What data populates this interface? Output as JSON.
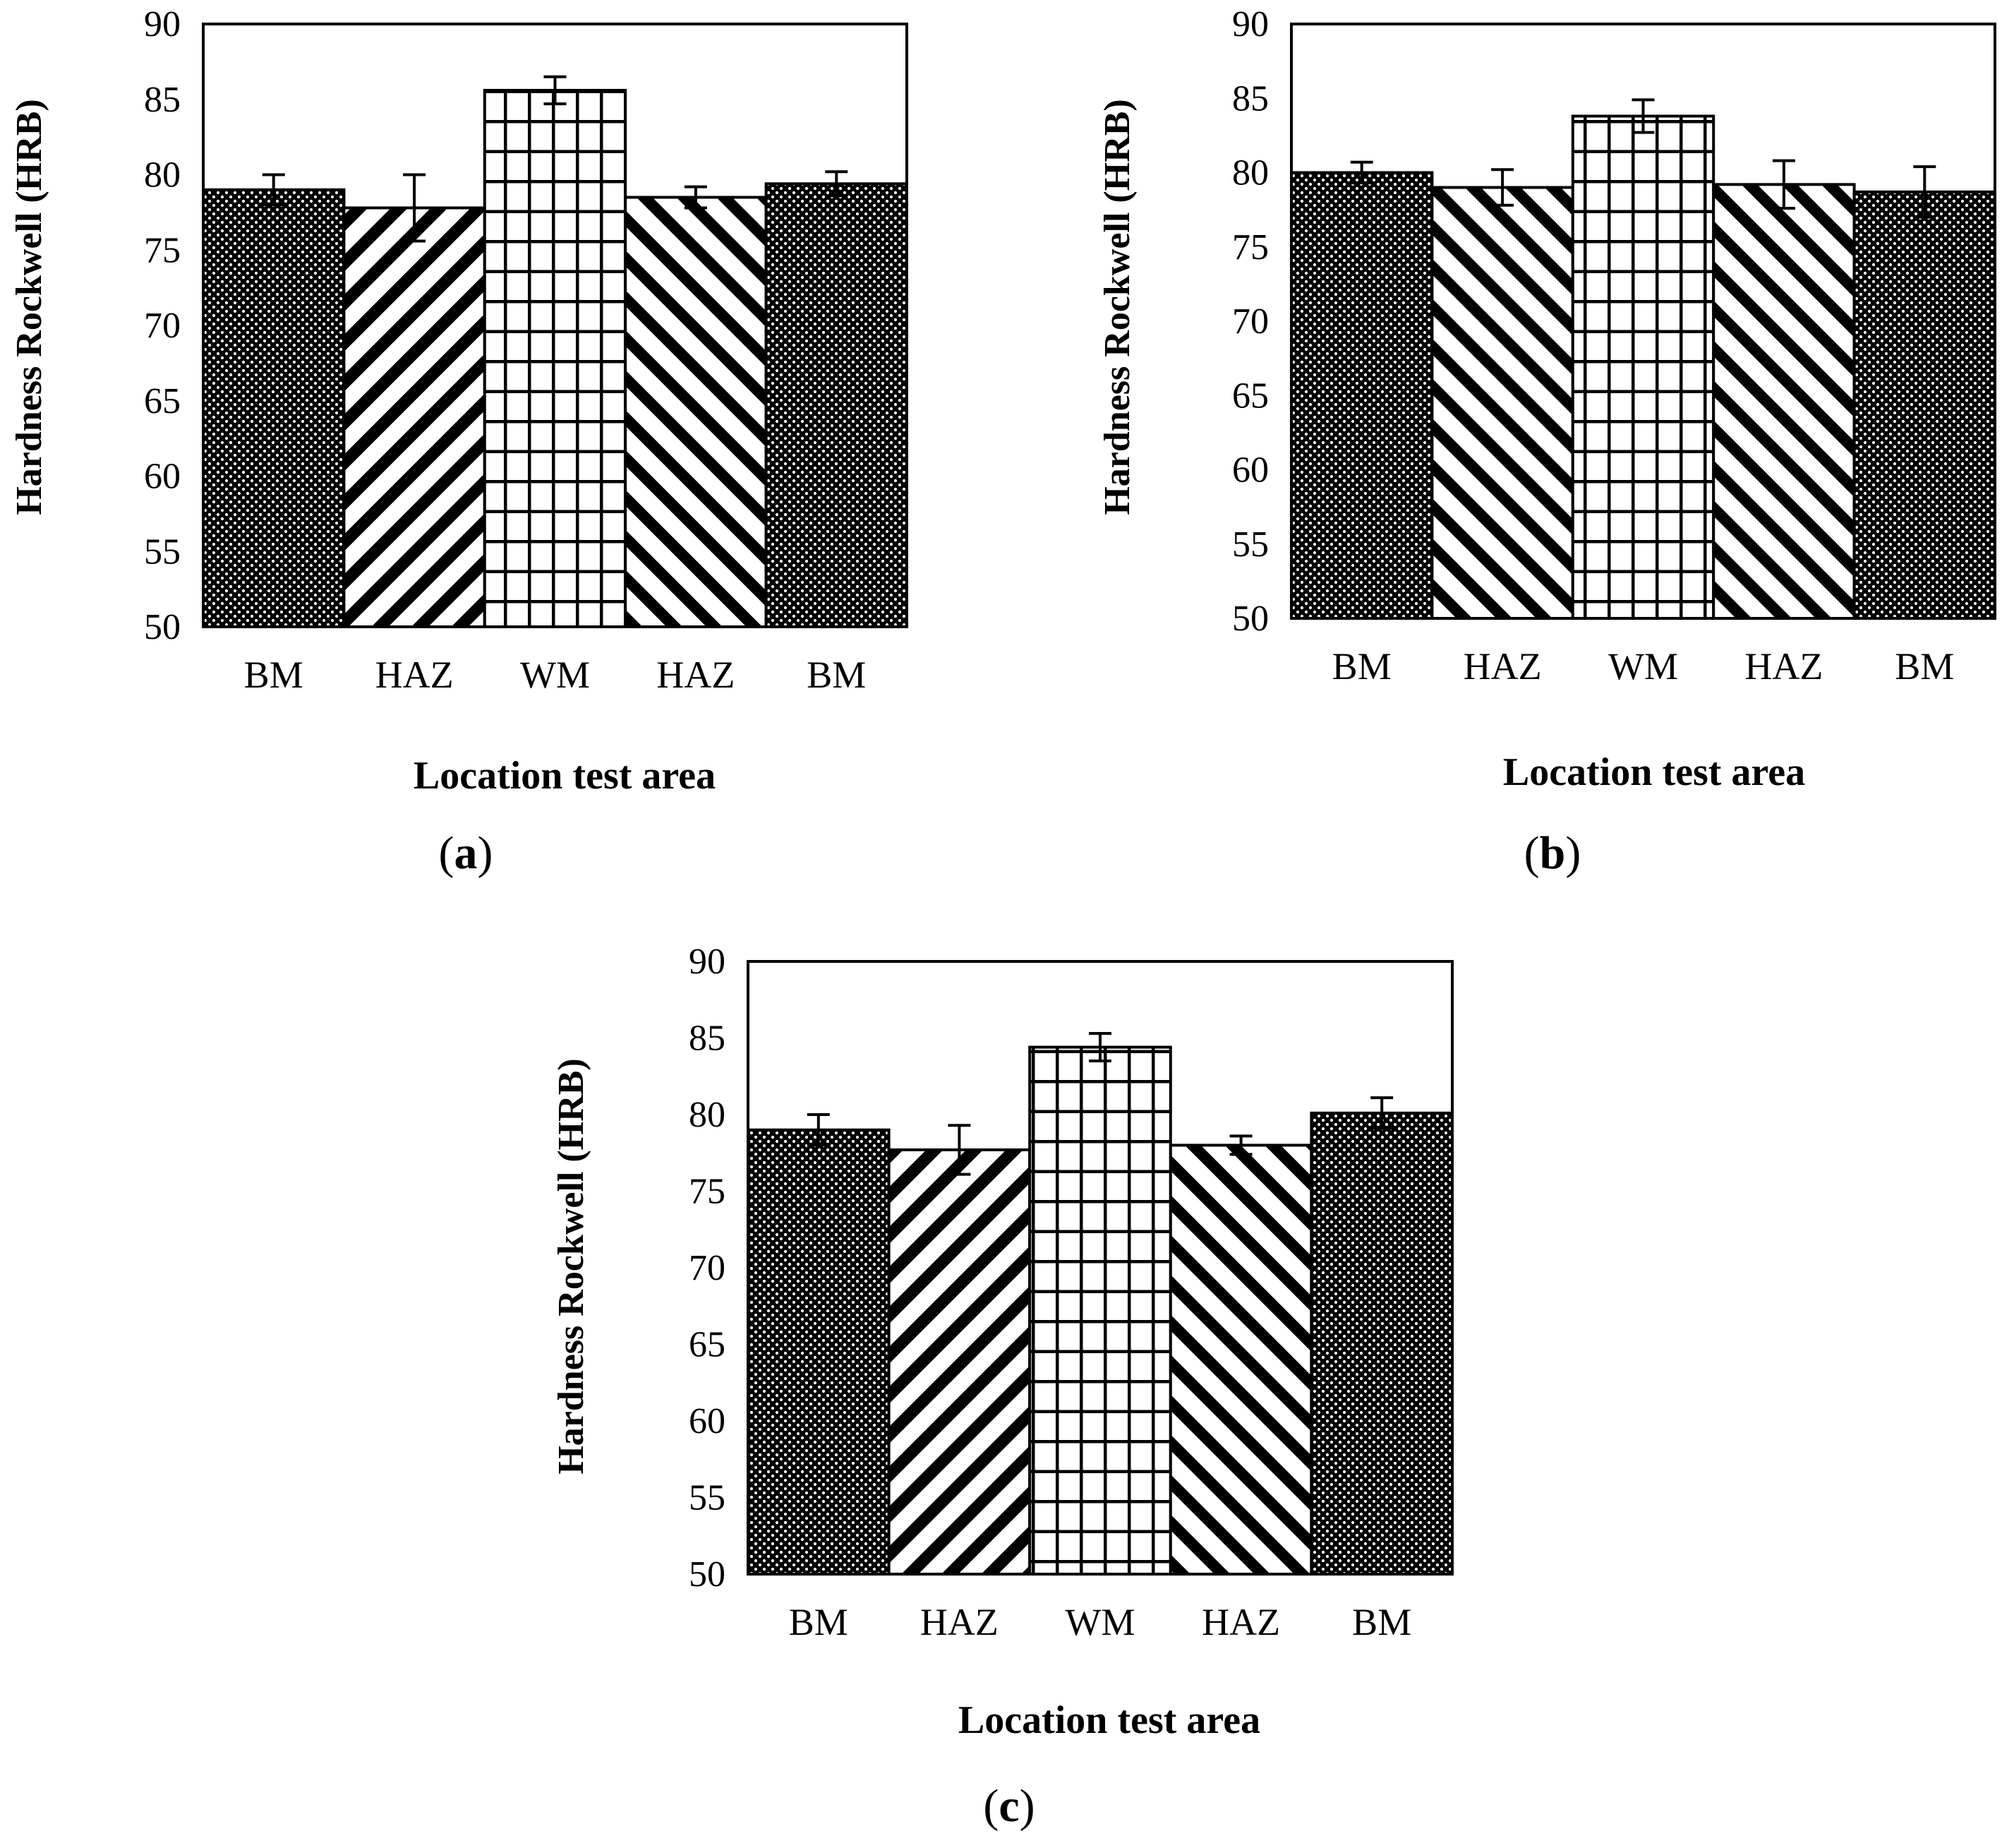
{
  "figure": {
    "background": "#ffffff",
    "ink": "#000000"
  },
  "chart_data": [
    {
      "panel": "a",
      "caption_letter": "a",
      "type": "bar",
      "title": "",
      "xlabel": "Location test area",
      "ylabel": "Hardness Rockwell (HRB)",
      "ylim": [
        50,
        90
      ],
      "yticks": [
        50,
        55,
        60,
        65,
        70,
        75,
        80,
        85,
        90
      ],
      "categories": [
        "BM",
        "HAZ",
        "WM",
        "HAZ",
        "BM"
      ],
      "values": [
        79.0,
        77.8,
        85.6,
        78.5,
        79.4
      ],
      "errors": [
        1.0,
        2.2,
        0.9,
        0.7,
        0.8
      ],
      "patterns": [
        "dots",
        "diag-dense",
        "grid",
        "diag-sparse",
        "dots"
      ]
    },
    {
      "panel": "b",
      "caption_letter": "b",
      "type": "bar",
      "title": "",
      "xlabel": "Location test area",
      "ylabel": "Hardness Rockwell (HRB)",
      "ylim": [
        50,
        90
      ],
      "yticks": [
        50,
        55,
        60,
        65,
        70,
        75,
        80,
        85,
        90
      ],
      "categories": [
        "BM",
        "HAZ",
        "WM",
        "HAZ",
        "BM"
      ],
      "values": [
        80.0,
        79.0,
        83.8,
        79.2,
        78.7
      ],
      "errors": [
        0.7,
        1.2,
        1.1,
        1.6,
        1.7
      ],
      "patterns": [
        "dots",
        "diag-sparse",
        "grid",
        "diag-sparse",
        "dots"
      ]
    },
    {
      "panel": "c",
      "caption_letter": "c",
      "type": "bar",
      "title": "",
      "xlabel": "Location test area",
      "ylabel": "Hardness Rockwell (HRB)",
      "ylim": [
        50,
        90
      ],
      "yticks": [
        50,
        55,
        60,
        65,
        70,
        75,
        80,
        85,
        90
      ],
      "categories": [
        "BM",
        "HAZ",
        "WM",
        "HAZ",
        "BM"
      ],
      "values": [
        79.0,
        77.7,
        84.4,
        78.0,
        80.1
      ],
      "errors": [
        1.0,
        1.6,
        0.9,
        0.6,
        1.0
      ],
      "patterns": [
        "dots",
        "diag-dense",
        "grid",
        "diag-sparse",
        "dots"
      ]
    }
  ]
}
